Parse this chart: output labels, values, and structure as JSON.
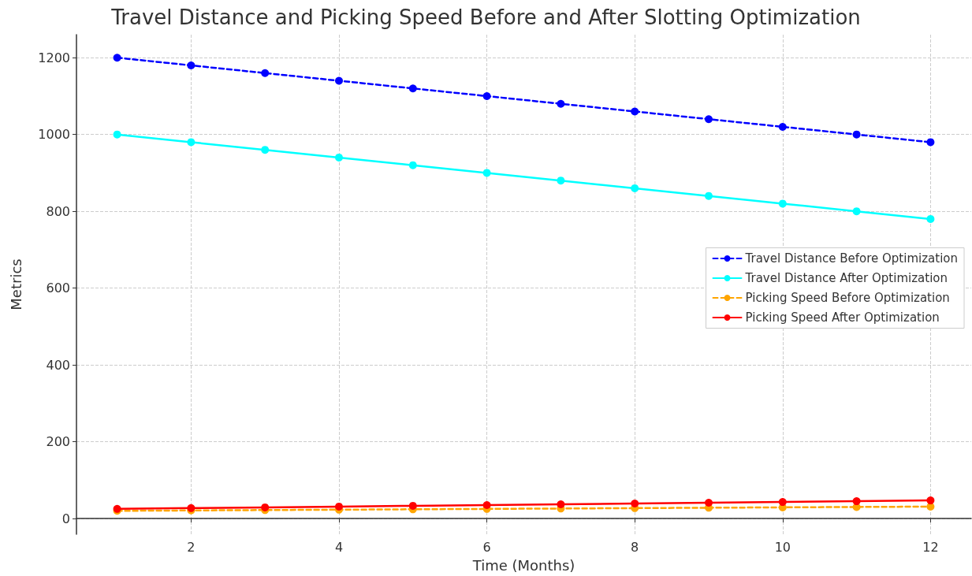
{
  "chart_data": {
    "type": "line",
    "title": "Travel Distance and Picking Speed Before and After Slotting Optimization",
    "xlabel": "Time (Months)",
    "ylabel": "Metrics",
    "x": [
      1,
      2,
      3,
      4,
      5,
      6,
      7,
      8,
      9,
      10,
      11,
      12
    ],
    "series": [
      {
        "name": "Travel Distance Before Optimization",
        "color": "#0000ff",
        "line_style": "dashed",
        "values": [
          1200,
          1180,
          1160,
          1140,
          1120,
          1100,
          1080,
          1060,
          1040,
          1020,
          1000,
          980
        ]
      },
      {
        "name": "Travel Distance After Optimization",
        "color": "#00ffff",
        "line_style": "solid",
        "values": [
          1000,
          980,
          960,
          940,
          920,
          900,
          880,
          860,
          840,
          820,
          800,
          780
        ]
      },
      {
        "name": "Picking Speed Before Optimization",
        "color": "#ffa500",
        "line_style": "dashed",
        "values": [
          20,
          21,
          22,
          23,
          24,
          25,
          26,
          27,
          28,
          29,
          30,
          31
        ]
      },
      {
        "name": "Picking Speed After Optimization",
        "color": "#ff0000",
        "line_style": "solid",
        "values": [
          25,
          27,
          29,
          31,
          33,
          35,
          37,
          39,
          41,
          43,
          45,
          47
        ]
      }
    ],
    "xlim": [
      0.45,
      12.55
    ],
    "xticks": [
      2,
      4,
      6,
      8,
      10,
      12
    ],
    "ylim": [
      -41,
      1260
    ],
    "yticks": [
      0,
      200,
      400,
      600,
      800,
      1000,
      1200
    ],
    "grid": true,
    "legend": "right",
    "marker": "circle"
  }
}
